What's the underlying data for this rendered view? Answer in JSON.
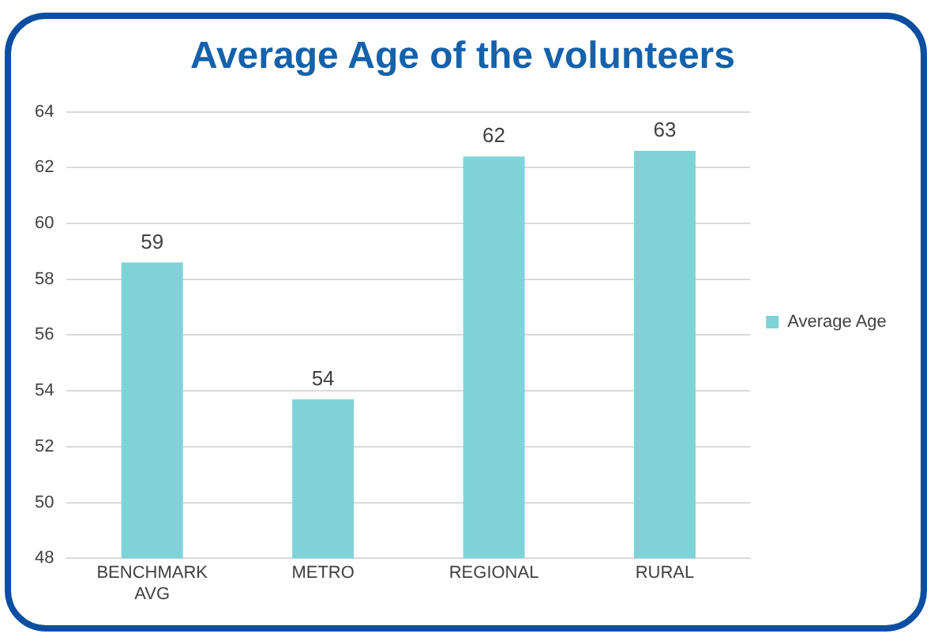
{
  "chart_data": {
    "type": "bar",
    "title": "Average Age of the volunteers",
    "categories": [
      "BENCHMARK AVG",
      "METRO",
      "REGIONAL",
      "RURAL"
    ],
    "series": [
      {
        "name": "Average Age",
        "color": "#7fd3d8",
        "values": [
          58.6,
          53.7,
          62.4,
          62.6
        ],
        "value_labels": [
          "59",
          "54",
          "62",
          "63"
        ]
      }
    ],
    "ylim": [
      48,
      64
    ],
    "yticks": [
      48,
      50,
      52,
      54,
      56,
      58,
      60,
      62,
      64
    ],
    "grid": "y",
    "legend": "right"
  }
}
